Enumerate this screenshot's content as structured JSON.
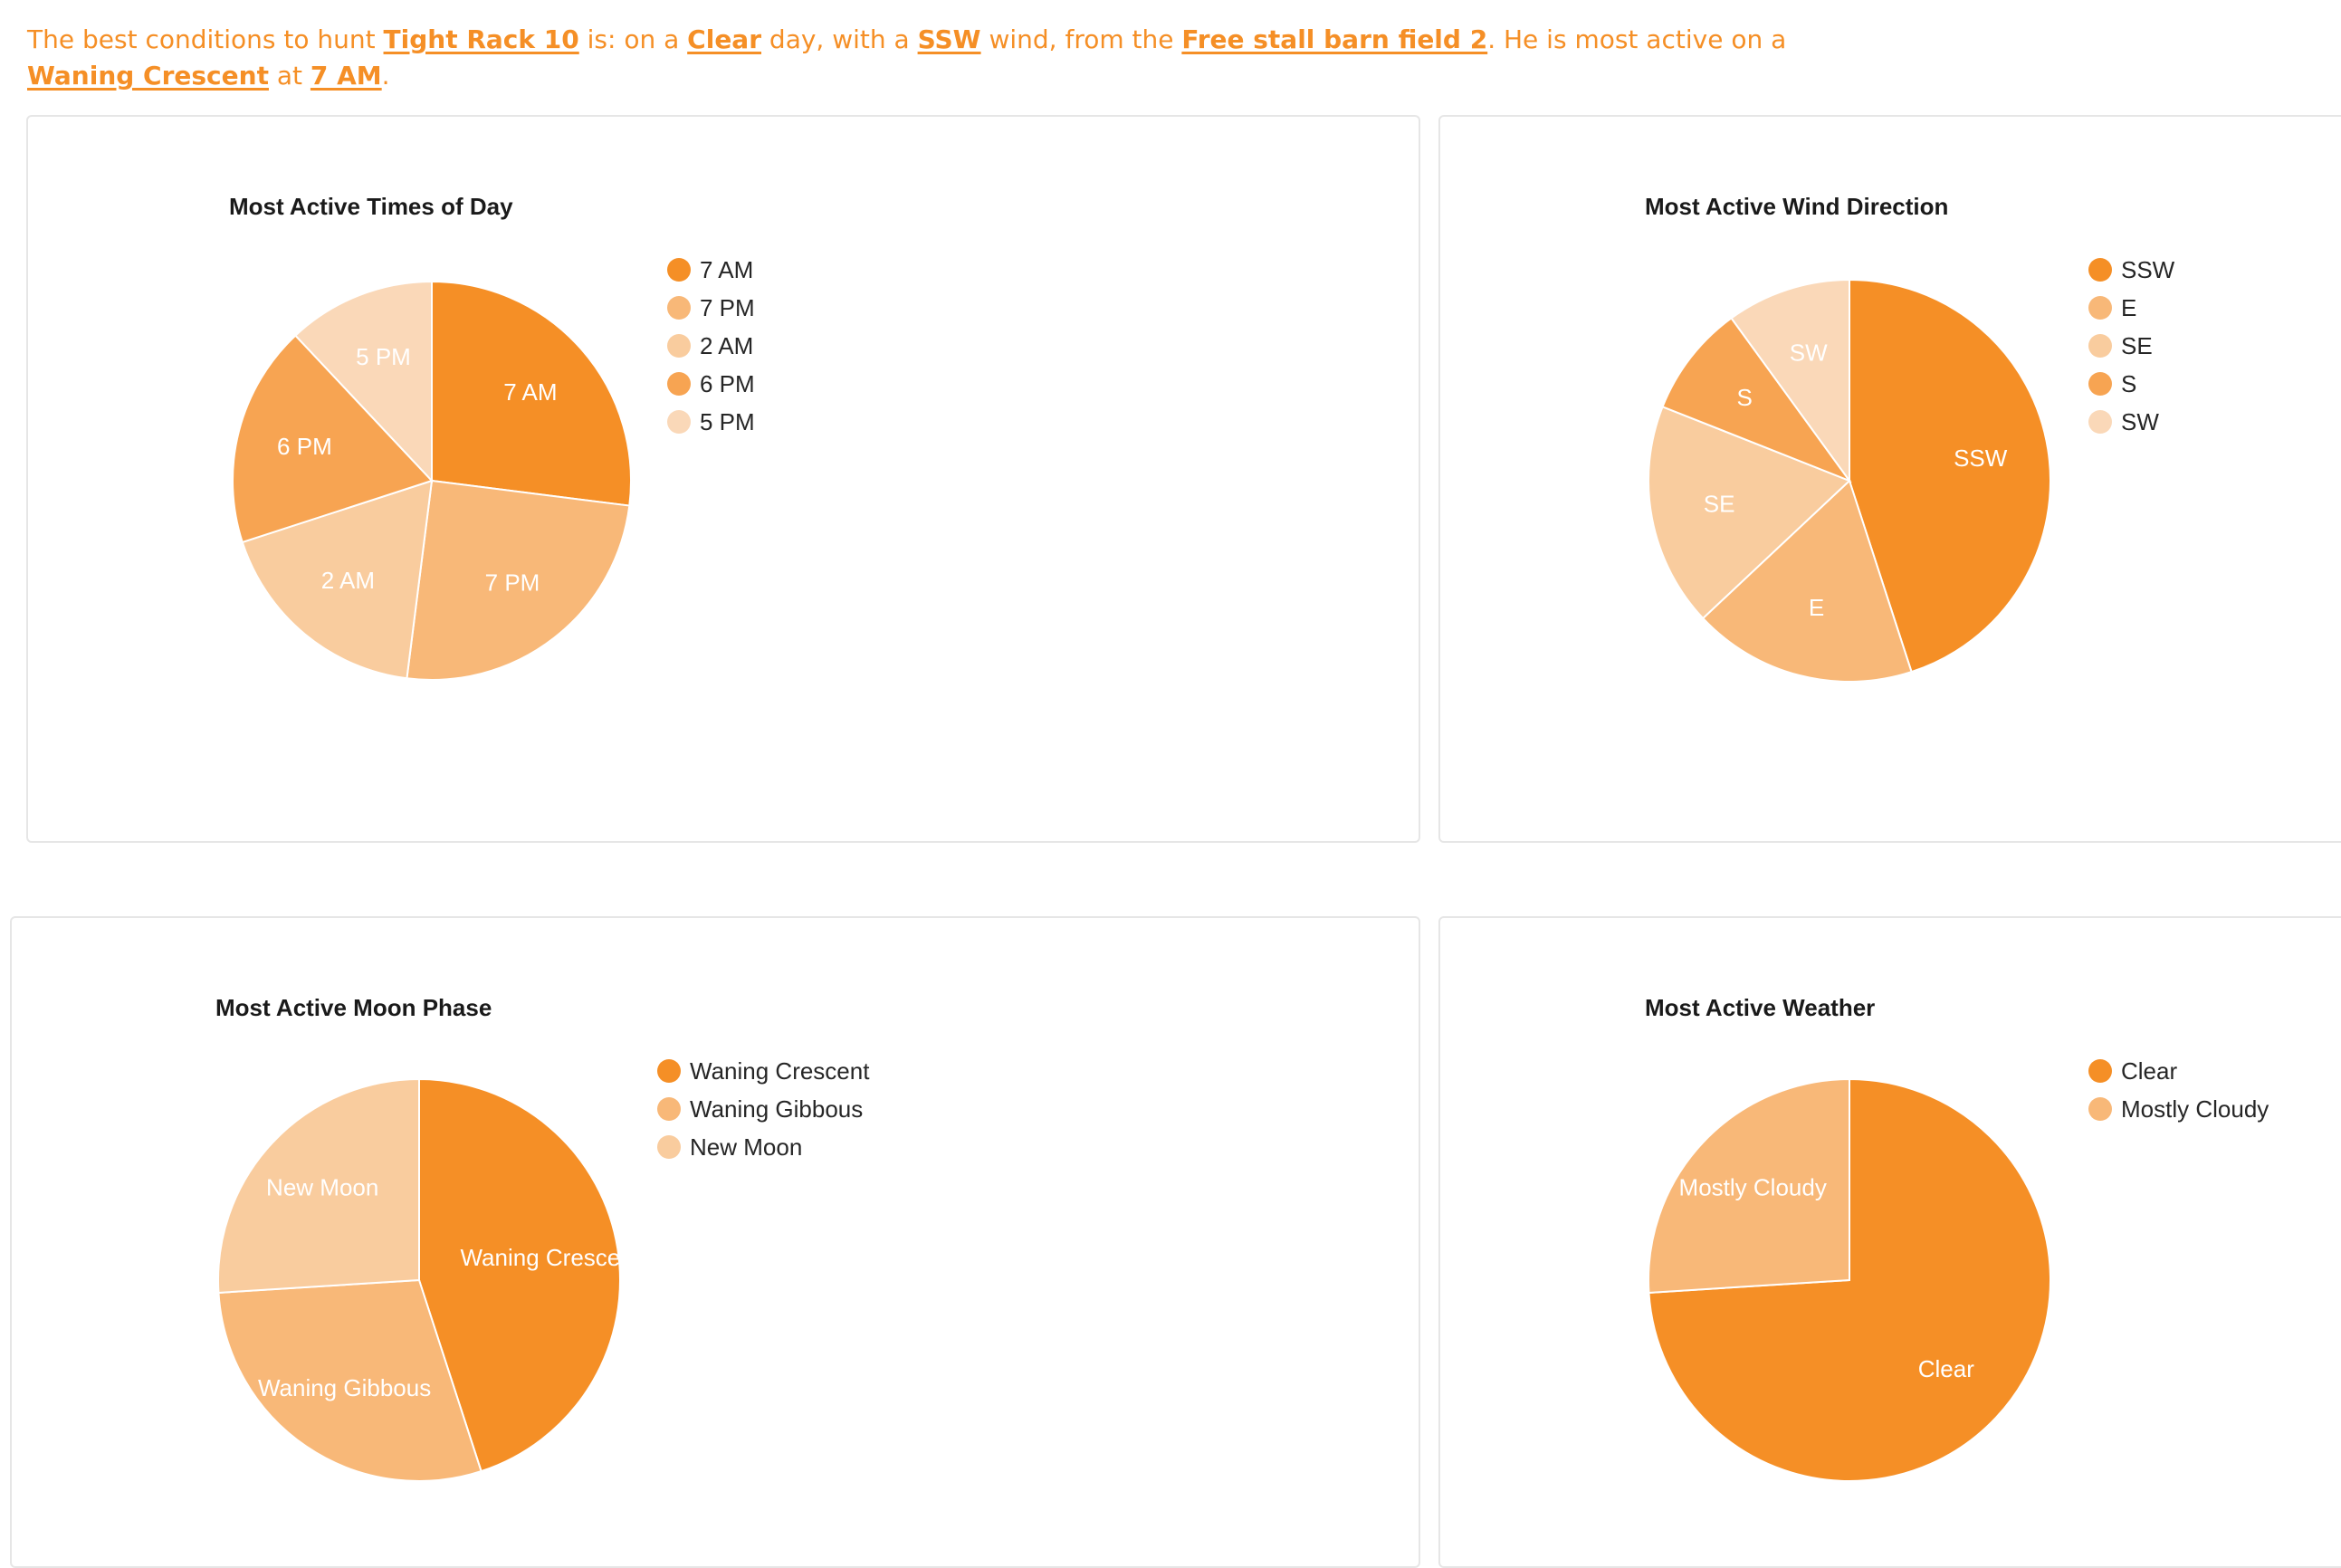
{
  "summary": {
    "p1": "The best conditions to hunt ",
    "deer": "Tight Rack 10",
    "p2": " is: on a ",
    "weather": "Clear",
    "p3": " day, with a ",
    "wind": "SSW",
    "p4": " wind, from the ",
    "location": "Free stall barn field 2",
    "p5": ". He is most active on a ",
    "moon": "Waning Crescent",
    "p6": " at ",
    "time": "7 AM",
    "p7": "."
  },
  "colors": {
    "accent": "#f58f26",
    "palette": [
      "#f58f26",
      "#f8b878",
      "#f9cc9e",
      "#f7a452",
      "#fad8b8"
    ]
  },
  "chart_data": [
    {
      "id": "times",
      "type": "pie",
      "title": "Most Active Times of Day",
      "categories": [
        "7 AM",
        "7 PM",
        "2 AM",
        "6 PM",
        "5 PM"
      ],
      "values": [
        27,
        25,
        18,
        18,
        12
      ],
      "colors": [
        "#f58f26",
        "#f8b878",
        "#f9cc9e",
        "#f7a452",
        "#fad8b8"
      ],
      "legend": "right"
    },
    {
      "id": "wind",
      "type": "pie",
      "title": "Most Active Wind Direction",
      "categories": [
        "SSW",
        "E",
        "SE",
        "S",
        "SW"
      ],
      "values": [
        45,
        18,
        18,
        9,
        10
      ],
      "colors": [
        "#f58f26",
        "#f8b878",
        "#f9cc9e",
        "#f7a452",
        "#fad8b8"
      ],
      "legend": "right"
    },
    {
      "id": "moon",
      "type": "pie",
      "title": "Most Active Moon Phase",
      "categories": [
        "Waning Crescent",
        "Waning Gibbous",
        "New Moon"
      ],
      "values": [
        45,
        29,
        26
      ],
      "colors": [
        "#f58f26",
        "#f8b878",
        "#f9cc9e"
      ],
      "legend": "right"
    },
    {
      "id": "weather",
      "type": "pie",
      "title": "Most Active Weather",
      "categories": [
        "Clear",
        "Mostly Cloudy"
      ],
      "values": [
        74,
        26
      ],
      "colors": [
        "#f58f26",
        "#f8b878"
      ],
      "legend": "right"
    }
  ]
}
